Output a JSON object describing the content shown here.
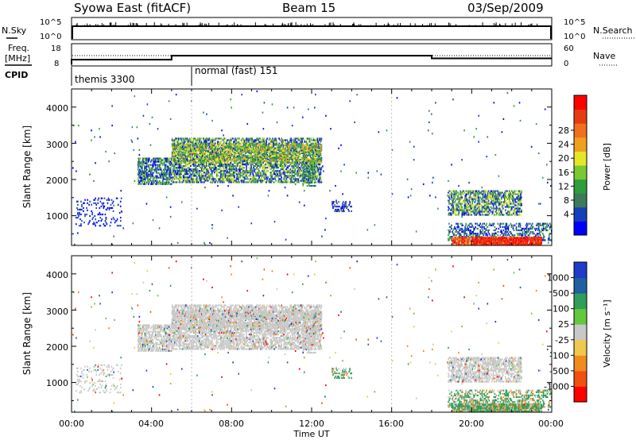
{
  "header": {
    "left_title": "Syowa East (fitACF)",
    "center_title": "Beam 15",
    "right_title": "03/Sep/2009"
  },
  "top_panels": {
    "nsky_label": "N.Sky",
    "nsearch_label": "N.Search",
    "nsky_ticks": [
      "10^5",
      "10^0"
    ],
    "nsearch_ticks": [
      "10^5",
      "10^0"
    ],
    "freq_label_1": "Freq.",
    "freq_label_2": "[MHz]",
    "freq_ticks": [
      "18",
      "8"
    ],
    "nave_label": "Nave",
    "nave_ticks": [
      "60",
      "0"
    ],
    "cpid_label": "CPID",
    "cpid_entries": [
      {
        "name": "themis 3300",
        "start_hour": 0
      },
      {
        "name": "normal (fast) 151",
        "start_hour": 6
      }
    ],
    "freq_steps": [
      {
        "from_hour": 0,
        "to_hour": 5,
        "mhz": 10.8
      },
      {
        "from_hour": 5,
        "to_hour": 18,
        "mhz": 12.6
      },
      {
        "from_hour": 18,
        "to_hour": 24,
        "mhz": 11.4
      }
    ]
  },
  "chart_data": [
    {
      "type": "heatmap",
      "name": "power",
      "ylabel": "Slant Range [km]",
      "colorbar_label": "Power [dB]",
      "colorbar_ticks": [
        "4",
        "8",
        "12",
        "16",
        "20",
        "24",
        "28"
      ],
      "colorbar_colors": [
        "#0000ff",
        "#1540b8",
        "#3c7a5a",
        "#2e9e3c",
        "#7cc832",
        "#e6e628",
        "#f0a020",
        "#f07020",
        "#e63c14",
        "#ff0000"
      ],
      "x_range_hours": [
        0,
        24
      ],
      "y_range_km": [
        180,
        4500
      ],
      "yticks": [
        "1000",
        "2000",
        "3000",
        "4000"
      ]
    },
    {
      "type": "heatmap",
      "name": "velocity",
      "ylabel": "Slant Range [km]",
      "colorbar_label": "Velocity  [m s⁻¹]",
      "colorbar_ticks": [
        "-1000",
        "-500",
        "-100",
        "-25",
        "25",
        "100",
        "500",
        "1000"
      ],
      "colorbar_colors": [
        "#ff0000",
        "#f05010",
        "#f08c1e",
        "#f0c850",
        "#c8c8c8",
        "#64c83c",
        "#2e9e5a",
        "#2060a0",
        "#1e3cc8"
      ],
      "x_range_hours": [
        0,
        24
      ],
      "y_range_km": [
        180,
        4500
      ],
      "yticks": [
        "1000",
        "2000",
        "3000",
        "4000"
      ]
    }
  ],
  "time_axis": {
    "xlabel": "Time UT",
    "ticks": [
      "00:00",
      "04:00",
      "08:00",
      "12:00",
      "16:00",
      "20:00",
      "00:00"
    ]
  }
}
